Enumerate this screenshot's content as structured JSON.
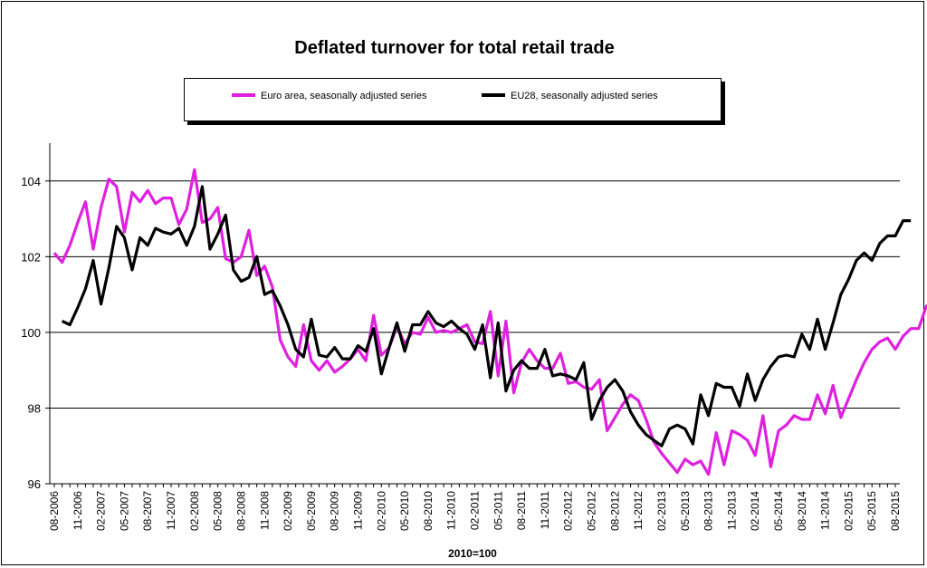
{
  "chart_data": {
    "type": "line",
    "title": "Deflated turnover for total retail trade",
    "xlabel": "2010=100",
    "ylabel": "",
    "ylim": [
      96,
      105
    ],
    "yticks": [
      96,
      98,
      100,
      102,
      104
    ],
    "ytick_labels": [
      "96",
      "98",
      "100",
      "102",
      "104"
    ],
    "grid": "horizontal",
    "legend": "top",
    "x_start": "08-2006",
    "x_tick_labels": [
      "08-2006",
      "11-2006",
      "02-2007",
      "05-2007",
      "08-2007",
      "11-2007",
      "02-2008",
      "05-2008",
      "08-2008",
      "11-2008",
      "02-2009",
      "05-2009",
      "08-2009",
      "11-2009",
      "02-2010",
      "05-2010",
      "08-2010",
      "11-2010",
      "02-2011",
      "05-2011",
      "08-2011",
      "11-2011",
      "02-2012",
      "05-2012",
      "08-2012",
      "11-2012",
      "02-2013",
      "05-2013",
      "08-2013",
      "11-2013",
      "02-2014",
      "05-2014",
      "08-2014",
      "11-2014",
      "02-2015",
      "05-2015",
      "08-2015"
    ],
    "series": [
      {
        "name": "Euro area, seasonally adjusted series",
        "color": "#e020e0",
        "values": [
          102.1,
          101.85,
          102.3,
          102.9,
          103.45,
          102.2,
          103.3,
          104.05,
          103.85,
          102.65,
          103.7,
          103.45,
          103.75,
          103.4,
          103.55,
          103.55,
          102.85,
          103.25,
          104.3,
          102.9,
          103.0,
          103.3,
          101.95,
          101.85,
          102.0,
          102.7,
          101.5,
          101.75,
          101.2,
          99.8,
          99.35,
          99.1,
          100.2,
          99.25,
          99.0,
          99.25,
          98.95,
          99.1,
          99.3,
          99.55,
          99.25,
          100.45,
          99.4,
          99.6,
          100.15,
          99.7,
          100.0,
          99.95,
          100.4,
          100.0,
          100.05,
          100.0,
          100.1,
          100.2,
          99.75,
          99.7,
          100.55,
          98.85,
          100.3,
          98.4,
          99.2,
          99.55,
          99.25,
          99.05,
          99.05,
          99.45,
          98.65,
          98.7,
          98.55,
          98.5,
          98.75,
          97.4,
          97.75,
          98.1,
          98.35,
          98.2,
          97.7,
          97.1,
          96.8,
          96.55,
          96.3,
          96.65,
          96.5,
          96.6,
          96.25,
          97.35,
          96.5,
          97.4,
          97.3,
          97.15,
          96.75,
          97.8,
          96.45,
          97.4,
          97.55,
          97.8,
          97.7,
          97.7,
          98.35,
          97.85,
          98.6,
          97.75,
          98.25,
          98.75,
          99.2,
          99.55,
          99.75,
          99.85,
          99.55,
          99.9,
          100.1,
          100.1,
          100.7,
          100.7
        ],
        "x_offset": 0
      },
      {
        "name": "EU28, seasonally adjusted series",
        "color": "#000000",
        "values": [
          100.3,
          100.2,
          100.65,
          101.15,
          101.9,
          100.75,
          101.7,
          102.8,
          102.5,
          101.65,
          102.5,
          102.3,
          102.75,
          102.65,
          102.6,
          102.75,
          102.3,
          102.8,
          103.85,
          102.2,
          102.6,
          103.1,
          101.65,
          101.35,
          101.45,
          102.0,
          101.0,
          101.1,
          100.7,
          100.2,
          99.55,
          99.35,
          100.35,
          99.4,
          99.35,
          99.6,
          99.3,
          99.3,
          99.65,
          99.5,
          100.1,
          98.9,
          99.6,
          100.25,
          99.5,
          100.2,
          100.2,
          100.55,
          100.25,
          100.15,
          100.3,
          100.1,
          99.95,
          99.55,
          100.2,
          98.8,
          100.25,
          98.45,
          99.0,
          99.25,
          99.05,
          99.05,
          99.55,
          98.85,
          98.9,
          98.85,
          98.75,
          99.2,
          97.7,
          98.2,
          98.55,
          98.75,
          98.45,
          97.9,
          97.55,
          97.3,
          97.15,
          97.0,
          97.45,
          97.55,
          97.45,
          97.05,
          98.35,
          97.8,
          98.65,
          98.55,
          98.55,
          98.05,
          98.9,
          98.2,
          98.75,
          99.1,
          99.35,
          99.4,
          99.35,
          99.95,
          99.55,
          100.35,
          99.55,
          100.25,
          101.0,
          101.4,
          101.9,
          102.1,
          101.9,
          102.35,
          102.55,
          102.55,
          102.95,
          102.95
        ],
        "x_offset": 1
      }
    ]
  }
}
